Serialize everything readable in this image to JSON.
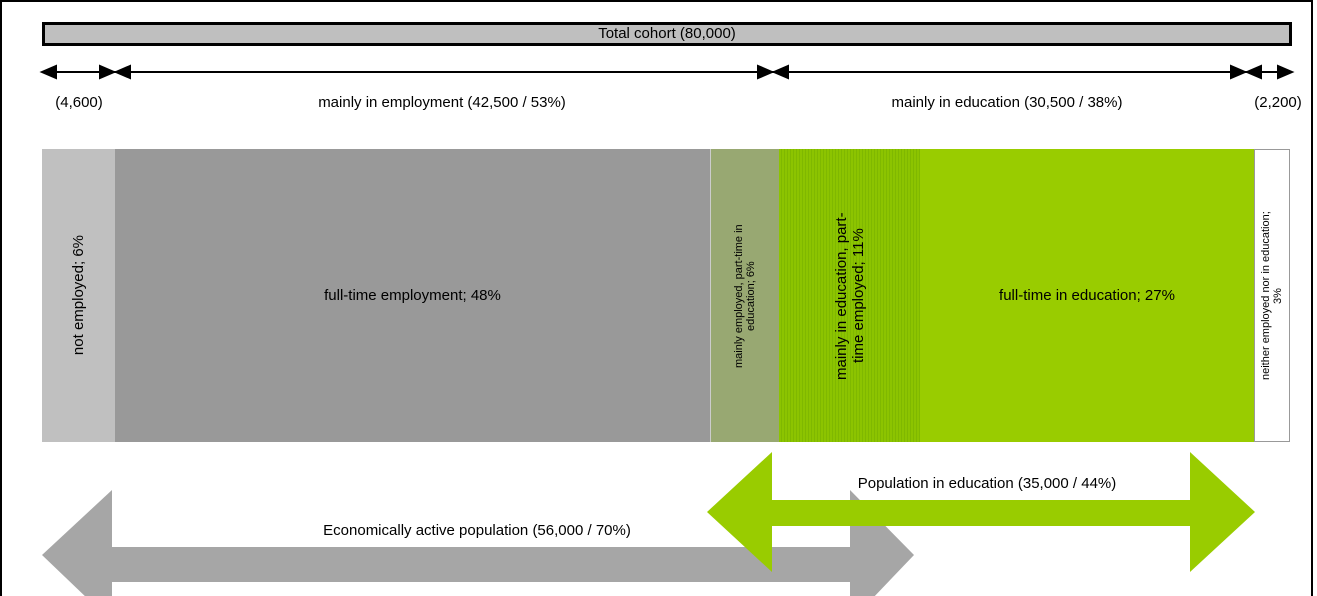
{
  "header": {
    "title": "Total cohort (80,000)"
  },
  "brackets": [
    {
      "label": "(4,600)"
    },
    {
      "label": "mainly in employment (42,500 / 53%)"
    },
    {
      "label": "mainly in education (30,500 / 38%)"
    },
    {
      "label": "(2,200)"
    }
  ],
  "segments": [
    {
      "label": "not employed; 6%"
    },
    {
      "label": "full-time employment; 48%"
    },
    {
      "label": "mainly employed, part-time in education; 6%"
    },
    {
      "label": "mainly in education, part-time employed; 11%"
    },
    {
      "label": "full-time in education; 27%"
    },
    {
      "label": "neither employed nor in education; 3%"
    }
  ],
  "arrows": [
    {
      "label": "Population in education (35,000 / 44%)"
    },
    {
      "label": "Economically active population (56,000 / 70%)"
    }
  ]
}
